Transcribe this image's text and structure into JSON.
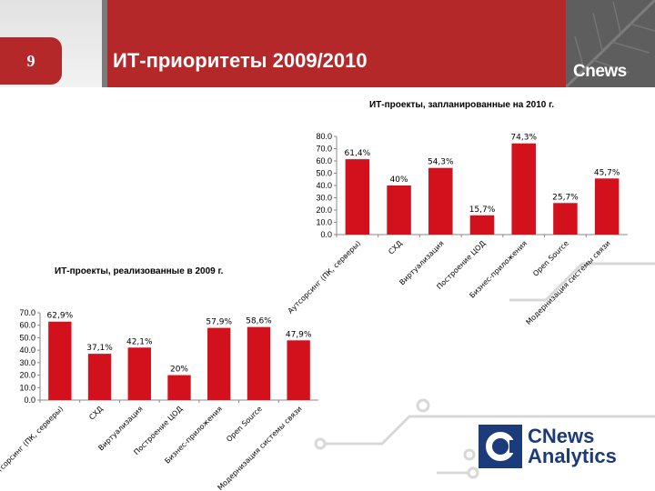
{
  "slide": {
    "number": "9",
    "title": "ИТ-приоритеты 2009/2010",
    "logo_text": "Cnews"
  },
  "brand": {
    "primary": "#b5282a",
    "bar_color": "#d2111d",
    "logo_line1": "CNews",
    "logo_line2": "Analytics"
  },
  "chart_data": [
    {
      "type": "bar",
      "title": "ИТ-проекты, запланированные на 2010 г.",
      "categories": [
        "Аутсорсинг (ПК, серверы)",
        "СХД",
        "Виртуализация",
        "Построение ЦОД",
        "Бизнес-приложения",
        "Open Source",
        "Модернизация системы связи"
      ],
      "values": [
        61.4,
        40,
        54.3,
        15.7,
        74.3,
        25.7,
        45.7
      ],
      "labels": [
        "61,4%",
        "40%",
        "54,3%",
        "15,7%",
        "74,3%",
        "25,7%",
        "45,7%"
      ],
      "yticks": [
        "0.0",
        "10.0",
        "20.0",
        "30.0",
        "40.0",
        "50.0",
        "60.0",
        "70.0",
        "80.0"
      ],
      "ylim": [
        0,
        80
      ]
    },
    {
      "type": "bar",
      "title": "ИТ-проекты, реализованные в 2009 г.",
      "categories": [
        "Аутсорсинг (ПК, серверы)",
        "СХД",
        "Виртуализация",
        "Построение ЦОД",
        "Бизнес-приложения",
        "Open Source",
        "Модернизация системы связи"
      ],
      "values": [
        62.9,
        37.1,
        42.1,
        20,
        57.9,
        58.6,
        47.9
      ],
      "labels": [
        "62,9%",
        "37,1%",
        "42,1%",
        "20%",
        "57,9%",
        "58,6%",
        "47,9%"
      ],
      "yticks": [
        "0.0",
        "10.0",
        "20.0",
        "30.0",
        "40.0",
        "50.0",
        "60.0",
        "70.0"
      ],
      "ylim": [
        0,
        70
      ]
    }
  ]
}
